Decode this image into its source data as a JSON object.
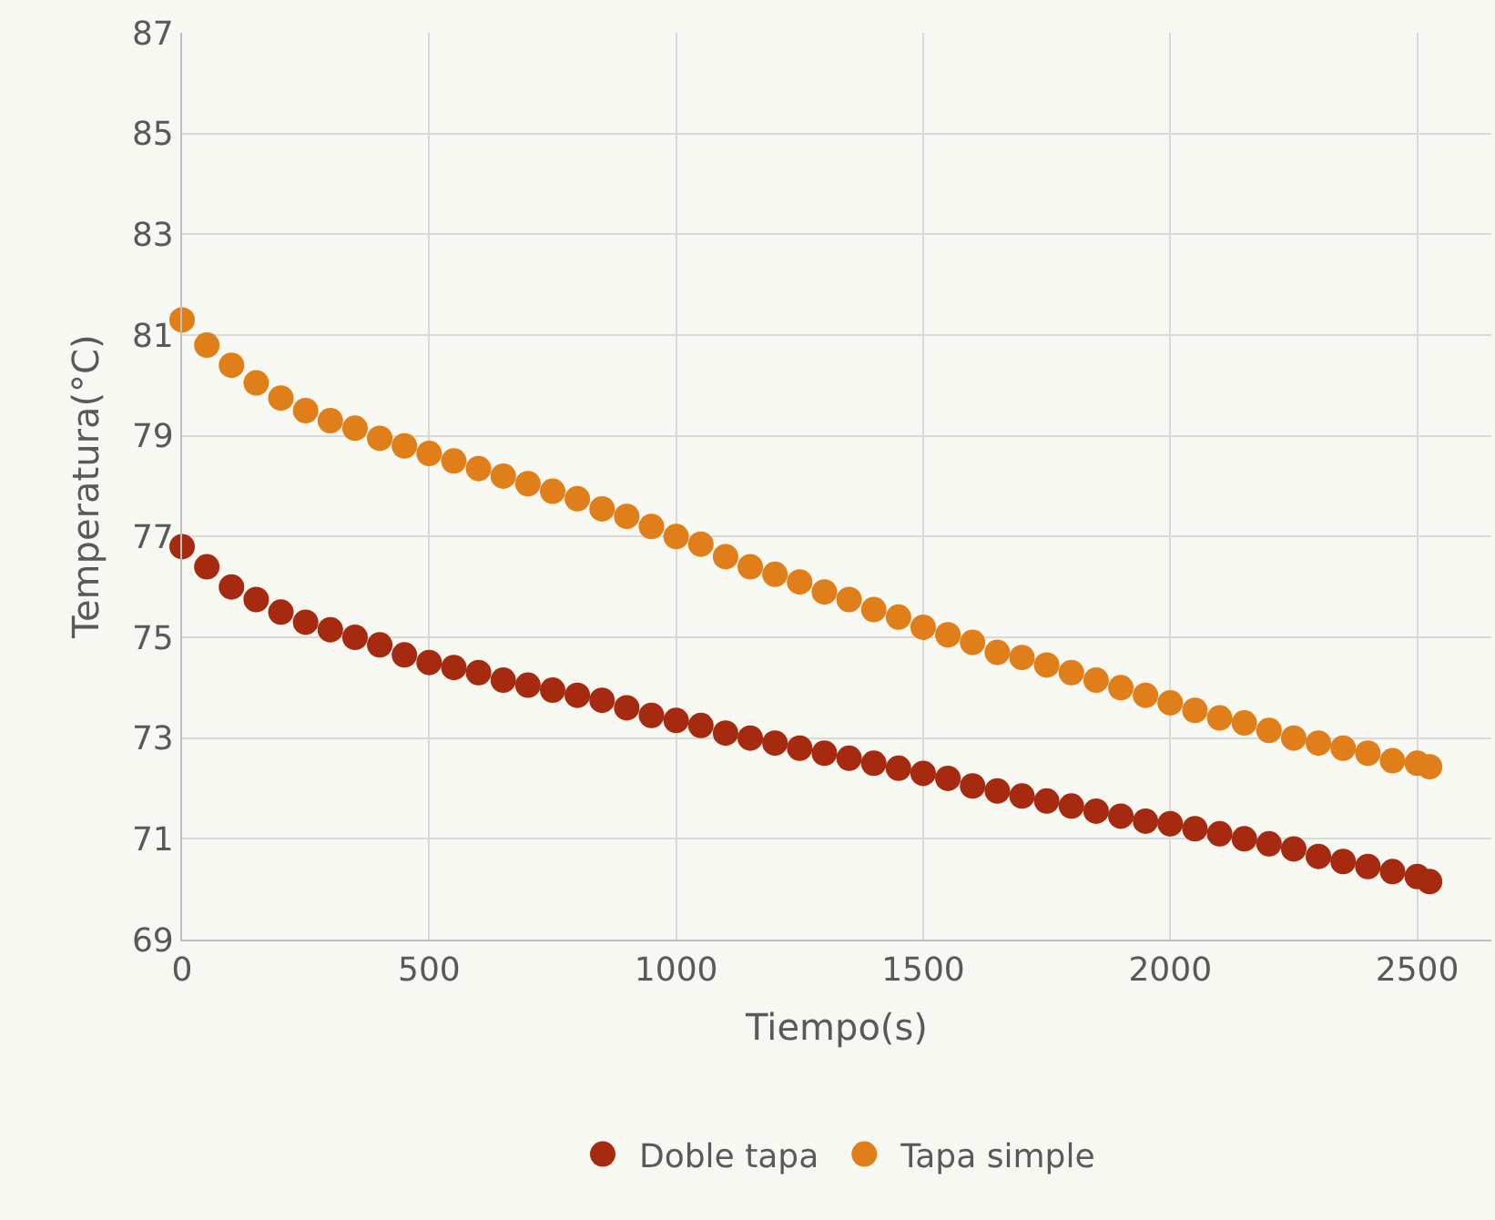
{
  "chart_data": {
    "type": "scatter",
    "xlabel": "Tiempo(s)",
    "ylabel": "Temperatura(°C)",
    "x": [
      0,
      50,
      100,
      150,
      200,
      250,
      300,
      350,
      400,
      450,
      500,
      550,
      600,
      650,
      700,
      750,
      800,
      850,
      900,
      950,
      1000,
      1050,
      1100,
      1150,
      1200,
      1250,
      1300,
      1350,
      1400,
      1450,
      1500,
      1550,
      1600,
      1650,
      1700,
      1750,
      1800,
      1850,
      1900,
      1950,
      2000,
      2050,
      2100,
      2150,
      2200,
      2250,
      2300,
      2350,
      2400,
      2450,
      2500,
      2525
    ],
    "series": [
      {
        "name": "Doble tapa",
        "color": "#a52a0f",
        "values": [
          76.8,
          76.4,
          76.0,
          75.75,
          75.5,
          75.3,
          75.15,
          75.0,
          74.85,
          74.65,
          74.5,
          74.4,
          74.3,
          74.15,
          74.05,
          73.95,
          73.85,
          73.75,
          73.6,
          73.45,
          73.35,
          73.25,
          73.1,
          73.0,
          72.9,
          72.8,
          72.7,
          72.6,
          72.5,
          72.4,
          72.3,
          72.2,
          72.05,
          71.95,
          71.85,
          71.75,
          71.65,
          71.55,
          71.45,
          71.35,
          71.3,
          71.2,
          71.1,
          71.0,
          70.9,
          70.8,
          70.65,
          70.55,
          70.45,
          70.35,
          70.25,
          70.15
        ]
      },
      {
        "name": "Tapa simple",
        "color": "#e07e1a",
        "values": [
          81.3,
          80.8,
          80.4,
          80.05,
          79.75,
          79.5,
          79.3,
          79.15,
          78.95,
          78.8,
          78.65,
          78.5,
          78.35,
          78.2,
          78.05,
          77.9,
          77.75,
          77.55,
          77.4,
          77.2,
          77.0,
          76.85,
          76.6,
          76.4,
          76.25,
          76.1,
          75.9,
          75.75,
          75.55,
          75.4,
          75.2,
          75.05,
          74.9,
          74.7,
          74.6,
          74.45,
          74.3,
          74.15,
          74.0,
          73.85,
          73.7,
          73.55,
          73.4,
          73.3,
          73.15,
          73.0,
          72.9,
          72.8,
          72.7,
          72.55,
          72.5,
          72.43
        ]
      }
    ],
    "xlim": [
      0,
      2650
    ],
    "xticks": [
      0,
      500,
      1000,
      1500,
      2000,
      2500
    ],
    "ylim": [
      69,
      87
    ],
    "yticks": [
      69,
      71,
      73,
      75,
      77,
      79,
      81,
      83,
      85,
      87
    ],
    "grid": true,
    "legend": "bottom",
    "marker": "circle"
  }
}
